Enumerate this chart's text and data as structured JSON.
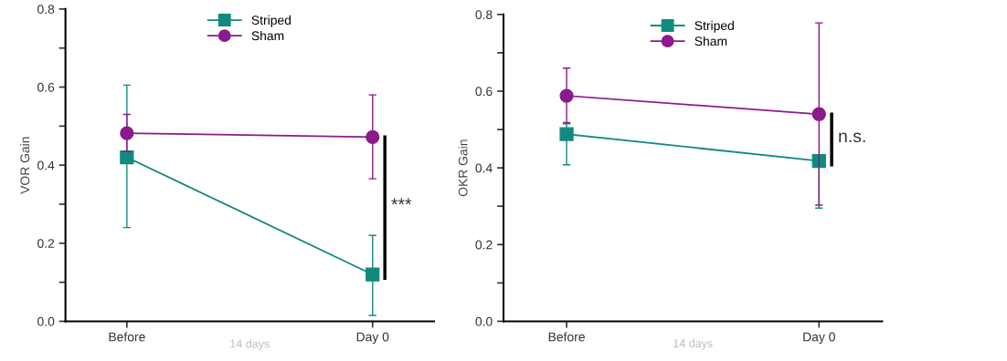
{
  "chart_data": [
    {
      "type": "line",
      "ylabel": "VOR Gain",
      "categories": [
        "Before",
        "Day 0"
      ],
      "ylim": [
        0,
        0.8
      ],
      "yticks": [
        {
          "value": 0,
          "label": "0.0"
        },
        {
          "value": 0.1,
          "label": null
        },
        {
          "value": 0.2,
          "label": "0.2"
        },
        {
          "value": 0.3,
          "label": null
        },
        {
          "value": 0.4,
          "label": "0.4"
        },
        {
          "value": 0.5,
          "label": null
        },
        {
          "value": 0.6,
          "label": "0.6"
        },
        {
          "value": 0.7,
          "label": null
        },
        {
          "value": 0.8,
          "label": "0.8"
        }
      ],
      "legend": "top",
      "grid": false,
      "series": [
        {
          "name": "Striped",
          "color": "#128a80",
          "marker": "square",
          "values": [
            0.42,
            0.12
          ],
          "errors": [
            [
              0.24,
              0.605
            ],
            [
              0.015,
              0.22
            ]
          ]
        },
        {
          "name": "Sham",
          "color": "#8b1a8c",
          "marker": "circle",
          "values": [
            0.482,
            0.472
          ],
          "errors": [
            [
              0.435,
              0.53
            ],
            [
              0.365,
              0.58
            ]
          ]
        }
      ],
      "annotations": [
        "14 days",
        "***"
      ]
    },
    {
      "type": "line",
      "ylabel": "OKR Gain",
      "categories": [
        "Before",
        "Day 0"
      ],
      "ylim": [
        0,
        0.8
      ],
      "yticks": [
        {
          "value": 0,
          "label": "0.0"
        },
        {
          "value": 0.1,
          "label": null
        },
        {
          "value": 0.2,
          "label": "0.2"
        },
        {
          "value": 0.3,
          "label": null
        },
        {
          "value": 0.4,
          "label": "0.4"
        },
        {
          "value": 0.5,
          "label": null
        },
        {
          "value": 0.6,
          "label": "0.6"
        },
        {
          "value": 0.7,
          "label": null
        },
        {
          "value": 0.8,
          "label": "0.8"
        }
      ],
      "legend": "top",
      "grid": false,
      "series": [
        {
          "name": "Striped",
          "color": "#128a80",
          "marker": "square",
          "values": [
            0.488,
            0.418
          ],
          "errors": [
            [
              0.408,
              0.515
            ],
            [
              0.295,
              0.418
            ]
          ]
        },
        {
          "name": "Sham",
          "color": "#8b1a8c",
          "marker": "circle",
          "values": [
            0.588,
            0.54
          ],
          "errors": [
            [
              0.518,
              0.66
            ],
            [
              0.303,
              0.778
            ]
          ]
        }
      ],
      "annotations": [
        "14 days",
        "n.s."
      ]
    }
  ]
}
